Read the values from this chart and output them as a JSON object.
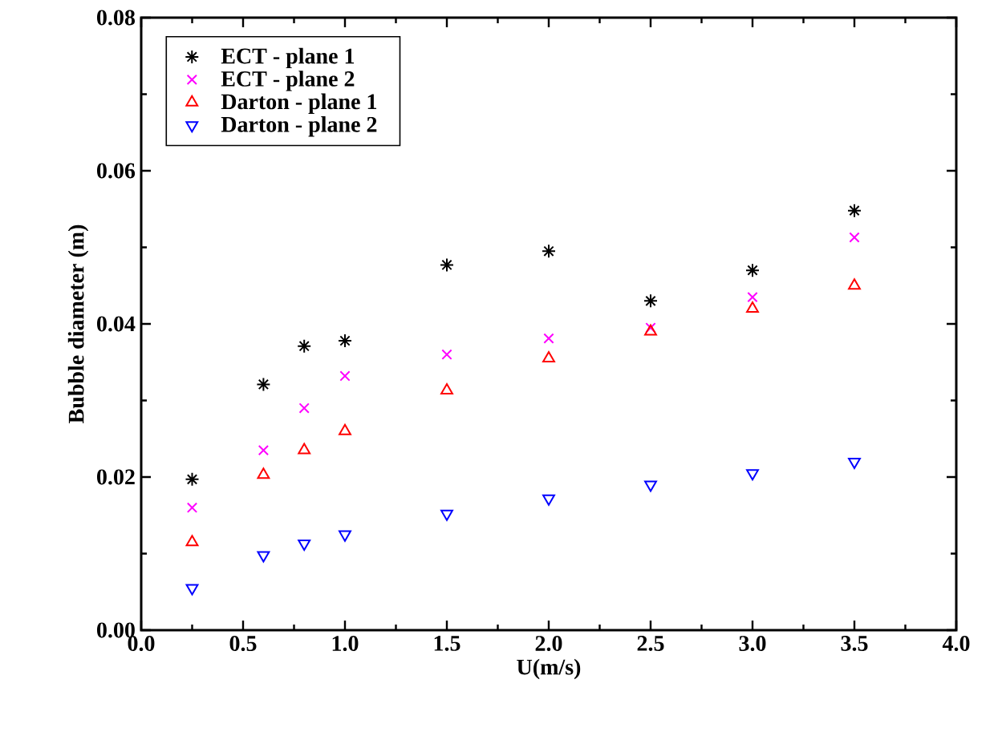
{
  "chart_data": {
    "type": "scatter",
    "xlabel": "U(m/s)",
    "ylabel": "Bubble diameter (m)",
    "xlim": [
      0,
      4
    ],
    "xticks": [
      {
        "value": 0,
        "label": "0.0"
      },
      0.5,
      {
        "value": 1,
        "label": "1.0"
      },
      1.5,
      {
        "value": 2,
        "label": "2.0"
      },
      2.5,
      {
        "value": 3,
        "label": "3.0"
      },
      3.5,
      {
        "value": 4,
        "label": "4.0"
      }
    ],
    "ylim": [
      0,
      0.08
    ],
    "yticks": [
      {
        "value": 0,
        "label": "0.00"
      },
      0.02,
      0.04,
      0.06,
      0.08
    ],
    "legend": "top left",
    "grid": false,
    "x": [
      0.25,
      0.6,
      0.8,
      1.0,
      1.5,
      2.0,
      2.5,
      3.0,
      3.5
    ],
    "series": [
      {
        "name": "ECT - plane 1",
        "color": "#000000",
        "values": [
          0.0197,
          0.0321,
          0.0371,
          0.0378,
          0.0477,
          0.0495,
          0.043,
          0.047,
          0.0548
        ]
      },
      {
        "name": "ECT - plane 2",
        "color": "#ff00ff",
        "marker": "cross",
        "values": [
          0.016,
          0.0235,
          0.029,
          0.0332,
          0.036,
          0.0381,
          0.0395,
          0.0435,
          0.0513
        ]
      },
      {
        "name": "Darton - plane 1",
        "color": "#ff0000",
        "marker": "triangle",
        "values": [
          0.0115,
          0.0203,
          0.0235,
          0.026,
          0.0313,
          0.0355,
          0.039,
          0.042,
          0.045
        ]
      },
      {
        "name": "Darton - plane 2",
        "color": "#0000ff",
        "marker": "triangle-down",
        "values": [
          0.0055,
          0.0098,
          0.0113,
          0.0125,
          0.0152,
          0.0172,
          0.019,
          0.0205,
          0.022
        ]
      }
    ]
  }
}
